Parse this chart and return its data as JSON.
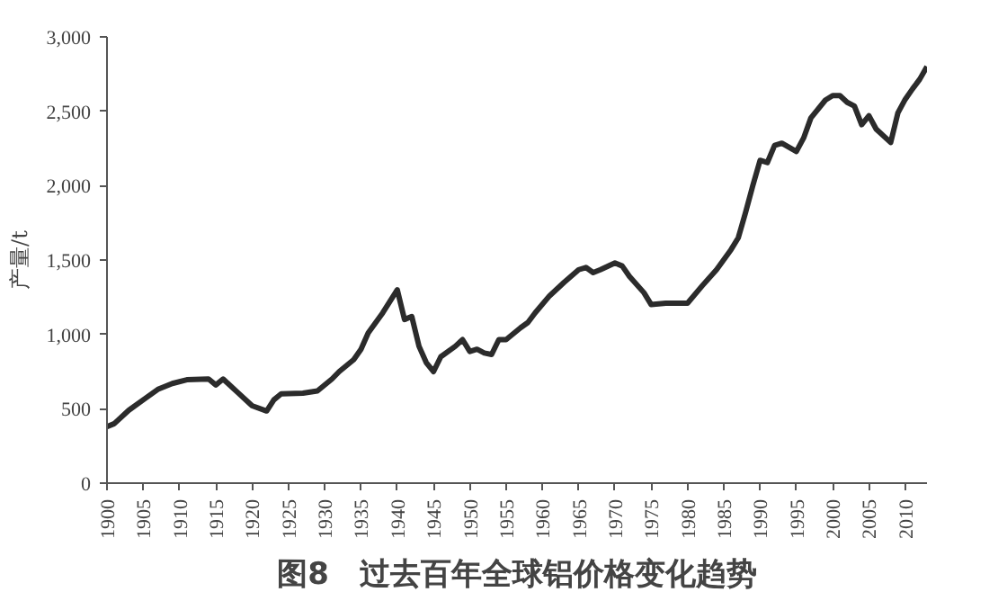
{
  "chart_data": {
    "type": "line",
    "title": "图8　过去百年全球铝价格变化趋势",
    "ylabel": "产量/t",
    "x": [
      1900,
      1901,
      1903,
      1905,
      1907,
      1909,
      1911,
      1914,
      1915,
      1916,
      1918,
      1920,
      1922,
      1923,
      1924,
      1927,
      1929,
      1931,
      1932,
      1934,
      1935,
      1936,
      1938,
      1940,
      1941,
      1942,
      1943,
      1944,
      1945,
      1946,
      1948,
      1949,
      1950,
      1951,
      1952,
      1953,
      1954,
      1955,
      1957,
      1958,
      1959,
      1961,
      1963,
      1965,
      1966,
      1967,
      1968,
      1970,
      1971,
      1972,
      1974,
      1975,
      1977,
      1980,
      1982,
      1984,
      1986,
      1987,
      1988,
      1989,
      1990,
      1991,
      1992,
      1993,
      1995,
      1996,
      1997,
      1999,
      2000,
      2001,
      2002,
      2003,
      2004,
      2005,
      2006,
      2008,
      2009,
      2010,
      2011,
      2012,
      2013
    ],
    "series": [
      {
        "color": "#2b2b2b",
        "values": [
          380,
          400,
          490,
          560,
          630,
          670,
          695,
          700,
          660,
          700,
          610,
          520,
          485,
          560,
          600,
          605,
          620,
          700,
          750,
          830,
          900,
          1010,
          1145,
          1300,
          1100,
          1120,
          920,
          810,
          750,
          850,
          920,
          965,
          885,
          900,
          875,
          865,
          965,
          965,
          1045,
          1080,
          1145,
          1260,
          1350,
          1435,
          1450,
          1415,
          1435,
          1480,
          1460,
          1390,
          1280,
          1200,
          1210,
          1210,
          1325,
          1435,
          1570,
          1650,
          1820,
          2000,
          2170,
          2155,
          2270,
          2285,
          2230,
          2320,
          2455,
          2575,
          2605,
          2605,
          2560,
          2535,
          2410,
          2470,
          2380,
          2290,
          2490,
          2580,
          2650,
          2715,
          2800
        ]
      }
    ],
    "xlim": [
      1900,
      2013
    ],
    "xticks": [
      1900,
      1905,
      1910,
      1915,
      1920,
      1925,
      1930,
      1935,
      1940,
      1945,
      1950,
      1955,
      1960,
      1965,
      1970,
      1975,
      1980,
      1985,
      1990,
      1995,
      2000,
      2005,
      2010
    ],
    "ylim": [
      0,
      3000
    ],
    "yticks": [
      0,
      {
        "value": 500,
        "label": "500"
      },
      {
        "value": 1000,
        "label": "1,000"
      },
      {
        "value": 1500,
        "label": "1,500"
      },
      {
        "value": 2000,
        "label": "2,000"
      },
      {
        "value": 2500,
        "label": "2,500"
      },
      {
        "value": 3000,
        "label": "3,000"
      }
    ],
    "grid": false,
    "marker": "none",
    "line_style": "solid"
  }
}
